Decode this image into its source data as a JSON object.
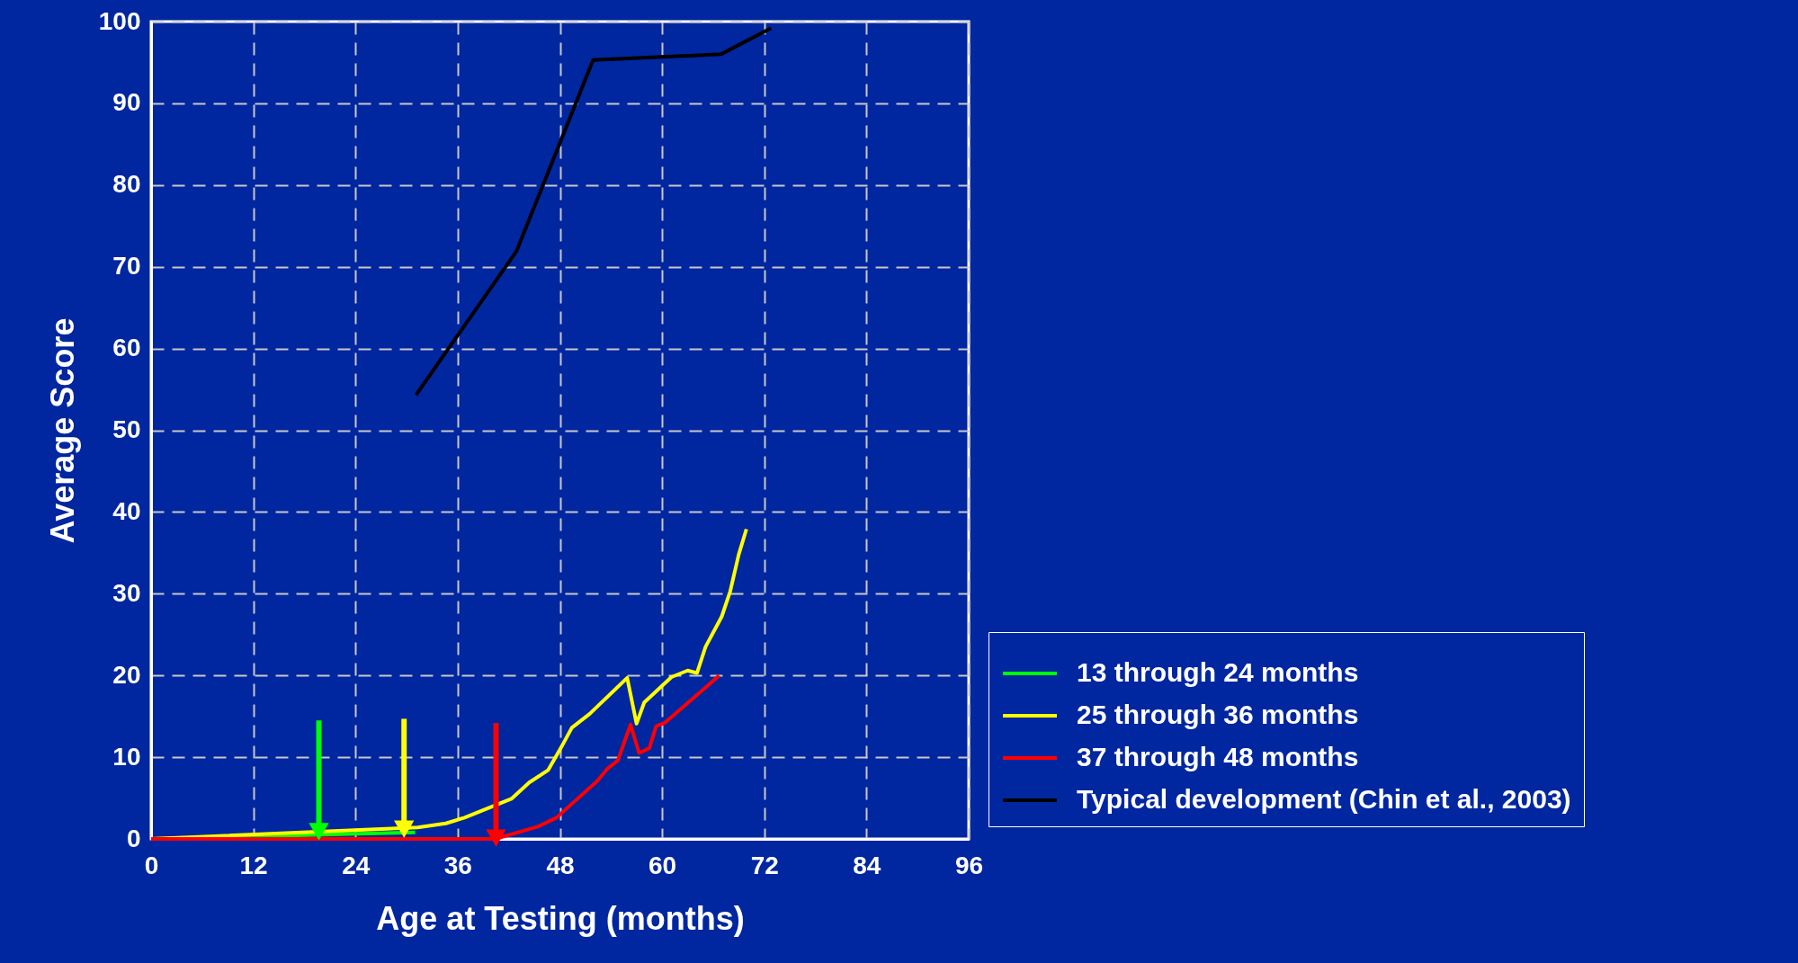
{
  "chart_data": {
    "type": "line",
    "xlabel": "Age at Testing (months)",
    "ylabel": "Average Score",
    "xlim": [
      0,
      96
    ],
    "xticks": [
      0,
      12,
      24,
      36,
      48,
      60,
      72,
      84,
      96
    ],
    "ylim": [
      0,
      100
    ],
    "yticks": [
      0,
      10,
      20,
      30,
      40,
      50,
      60,
      70,
      80,
      90,
      100
    ],
    "grid": true,
    "legend": "bottom right",
    "line_style": "solid",
    "series": [
      {
        "name": "13 through 24 months",
        "color": "#00ff00",
        "x": [
          0,
          31
        ],
        "values": [
          0,
          0.8
        ]
      },
      {
        "name": "25 through 36 months",
        "color": "#ffff00",
        "x": [
          0,
          31.3,
          34.6,
          36.8,
          42.3,
          44.4,
          46.6,
          48.1,
          49.4,
          51.5,
          55.9,
          57,
          57.9,
          61.1,
          63,
          64.1,
          65.1,
          67,
          68,
          69,
          69.9
        ],
        "values": [
          0,
          1.4,
          1.9,
          2.6,
          4.9,
          6.9,
          8.4,
          11.1,
          13.6,
          15.3,
          19.7,
          14.1,
          16.7,
          19.8,
          20.6,
          20.3,
          23.5,
          27.2,
          30.3,
          34.8,
          37.9
        ]
      },
      {
        "name": "37 through 48 months",
        "color": "#ff0000",
        "x": [
          0,
          40.4,
          45.4,
          47.6,
          52.4,
          53.6,
          54.8,
          56.3,
          57.3,
          58.5,
          59.3,
          60.3,
          63.2,
          65.3,
          66.7
        ],
        "values": [
          0,
          0,
          1.5,
          2.6,
          7.1,
          8.6,
          9.6,
          14,
          10.5,
          11.1,
          13.8,
          14.2,
          16.8,
          18.7,
          20
        ]
      },
      {
        "name": "Typical development (Chin et al., 2003)",
        "color": "#000000",
        "x": [
          31.1,
          42.9,
          51.9,
          66.9,
          72.8
        ],
        "values": [
          54.3,
          71.9,
          95.3,
          96,
          99.2
        ]
      },
      {
        "type": "line",
        "color": "#00ff00",
        "marker": "triangle",
        "x": [
          19.7,
          19.7
        ],
        "values": [
          14.5,
          0.9
        ]
      },
      {
        "type": "line",
        "color": "#ffff00",
        "marker": "triangle",
        "x": [
          29.7,
          29.7
        ],
        "values": [
          14.7,
          1.2
        ]
      },
      {
        "type": "line",
        "color": "#ff0000",
        "marker": "triangle",
        "x": [
          40.5,
          40.5
        ],
        "values": [
          14.2,
          0.1
        ]
      }
    ]
  }
}
